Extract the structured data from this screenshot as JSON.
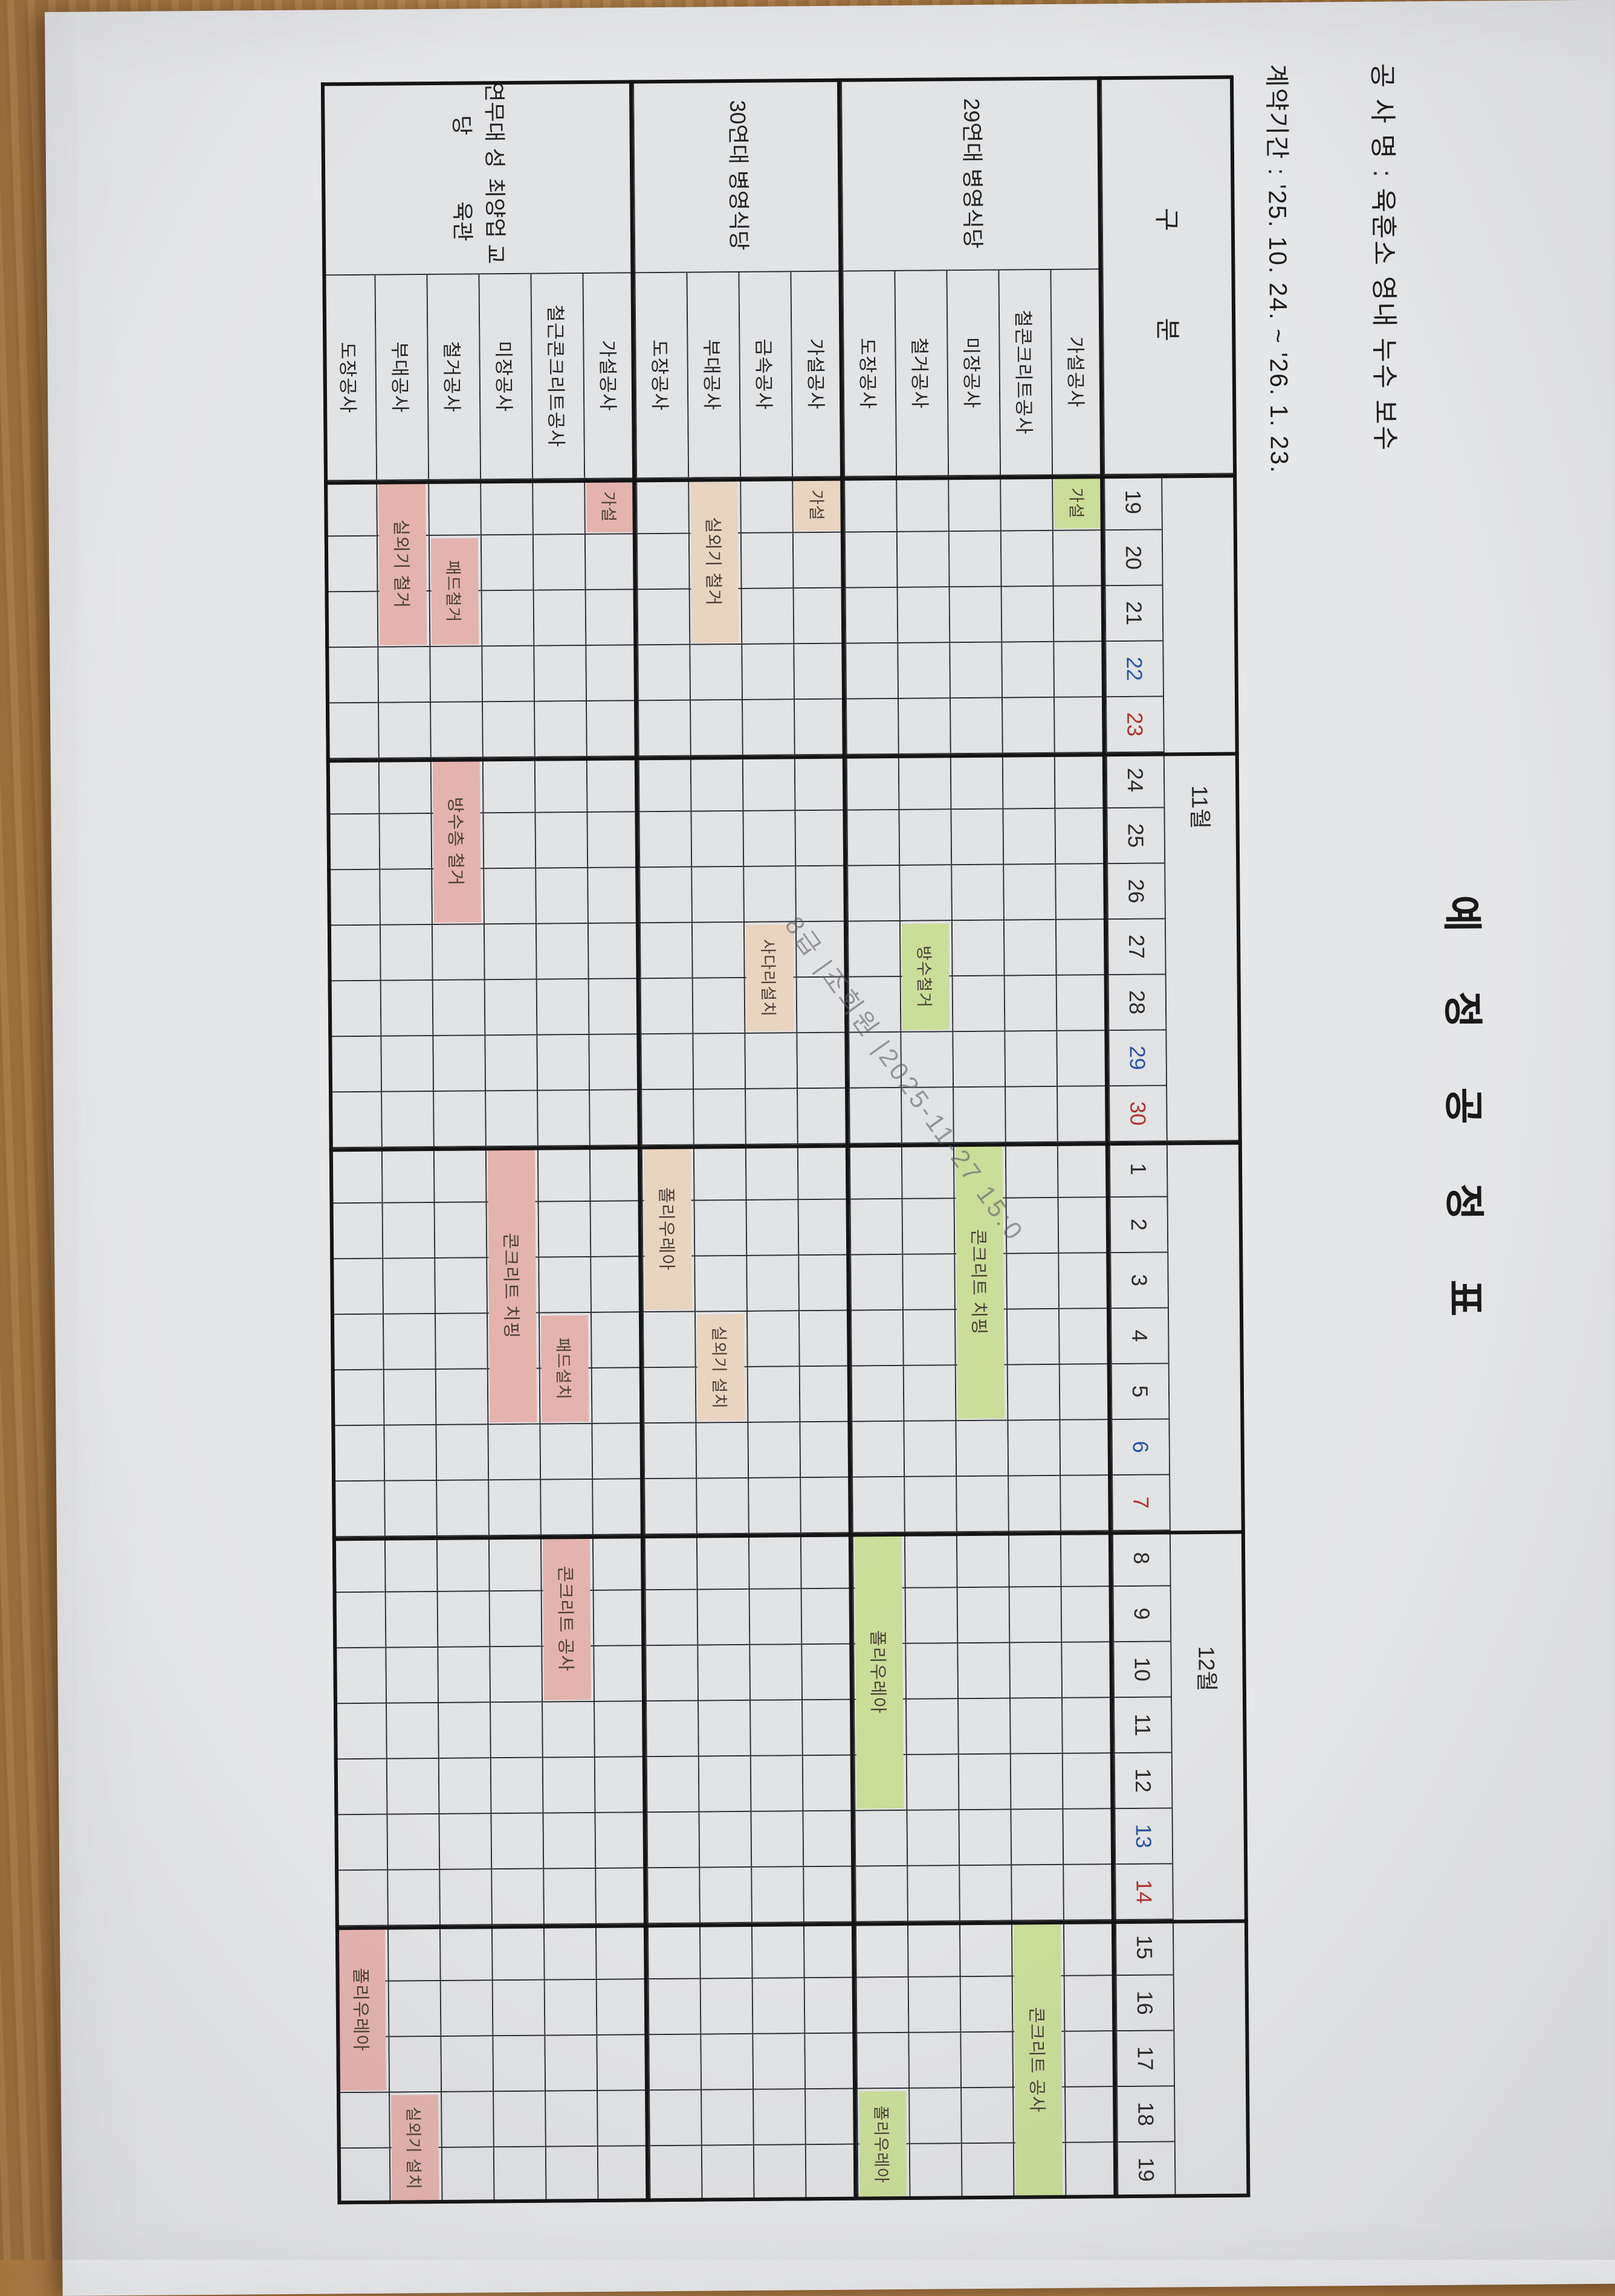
{
  "page": {
    "title": "예 정 공 정 표",
    "project_line": "공 사 명 : 육훈소 영내 누수 보수",
    "contract_line": "계약기간 : '25. 10. 24. ~ '26. 1. 23.",
    "watermark": "8급 |조회원 |2025-11-27 15:0"
  },
  "colors": {
    "green": "#cadd99",
    "tan": "#e9d4c0",
    "pink": "#e4b3ae",
    "saturday": "#2b55a3",
    "sunday": "#b23430",
    "paper": "#e6e7e9",
    "cell": "#e2e3e5",
    "wood": "#b5854f",
    "ink": "#232323"
  },
  "table": {
    "corner_label": "구 분",
    "months": [
      {
        "label": "11월",
        "month": 11,
        "days": [
          19,
          20,
          21,
          22,
          23,
          24,
          25,
          26,
          27,
          28,
          29,
          30
        ],
        "saturdays": [
          22,
          29
        ],
        "sundays": [
          23,
          30
        ]
      },
      {
        "label": "12월",
        "month": 12,
        "days": [
          1,
          2,
          3,
          4,
          5,
          6,
          7,
          8,
          9,
          10,
          11,
          12,
          13,
          14,
          15,
          16,
          17,
          18,
          19
        ],
        "saturdays": [
          6,
          13
        ],
        "sundays": [
          7,
          14
        ]
      }
    ],
    "week_boundaries_after": [
      "11-23",
      "11-30",
      "12-07",
      "12-14"
    ],
    "groups": [
      {
        "name": "29연대 병영식당",
        "color": "green",
        "rows": [
          {
            "label": "가설공사",
            "bars": [
              {
                "text": "가설",
                "start": "11-19",
                "end": "11-19"
              }
            ]
          },
          {
            "label": "철콘크리트공사",
            "bars": [
              {
                "text": "콘크리트 공사",
                "start": "12-15",
                "end": "12-19"
              }
            ]
          },
          {
            "label": "미장공사",
            "bars": [
              {
                "text": "콘크리트 치핑",
                "start": "12-01",
                "end": "12-05"
              }
            ]
          },
          {
            "label": "철거공사",
            "bars": [
              {
                "text": "방수철거",
                "start": "11-27",
                "end": "11-28"
              }
            ]
          },
          {
            "label": "도장공사",
            "bars": [
              {
                "text": "폴리우레아",
                "start": "12-08",
                "end": "12-12"
              },
              {
                "text": "폴리우레아",
                "start": "12-18",
                "end": "12-19"
              }
            ]
          }
        ]
      },
      {
        "name": "30연대 병영식당",
        "color": "tan",
        "rows": [
          {
            "label": "가설공사",
            "bars": [
              {
                "text": "가설",
                "start": "11-19",
                "end": "11-19"
              }
            ]
          },
          {
            "label": "금속공사",
            "bars": [
              {
                "text": "사다리설치",
                "start": "11-27",
                "end": "11-28"
              }
            ]
          },
          {
            "label": "부대공사",
            "bars": [
              {
                "text": "실외기 철거",
                "start": "11-19",
                "end": "11-21"
              },
              {
                "text": "실외기 설치",
                "start": "12-04",
                "end": "12-05"
              }
            ]
          },
          {
            "label": "도장공사",
            "bars": [
              {
                "text": "폴리우레아",
                "start": "12-01",
                "end": "12-03"
              }
            ]
          }
        ]
      },
      {
        "name": "연무대 성당\n최양업 교육관",
        "color": "pink",
        "rows": [
          {
            "label": "가설공사",
            "bars": [
              {
                "text": "가설",
                "start": "11-19",
                "end": "11-19"
              }
            ]
          },
          {
            "label": "철근콘크리트공사",
            "bars": [
              {
                "text": "패드설치",
                "start": "12-04",
                "end": "12-05"
              },
              {
                "text": "콘크리트 공사",
                "start": "12-08",
                "end": "12-10"
              }
            ]
          },
          {
            "label": "미장공사",
            "bars": [
              {
                "text": "콘크리트 치핑",
                "start": "12-01",
                "end": "12-05"
              }
            ]
          },
          {
            "label": "철거공사",
            "bars": [
              {
                "text": "패드철거",
                "start": "11-20",
                "end": "11-21"
              },
              {
                "text": "방수층 철거",
                "start": "11-24",
                "end": "11-26"
              }
            ]
          },
          {
            "label": "부대공사",
            "bars": [
              {
                "text": "실외기 철거",
                "start": "11-19",
                "end": "11-21"
              },
              {
                "text": "실외기 설치",
                "start": "12-18",
                "end": "12-19"
              }
            ]
          },
          {
            "label": "도장공사",
            "bars": [
              {
                "text": "폴리우레아",
                "start": "12-15",
                "end": "12-17"
              }
            ]
          }
        ]
      }
    ]
  }
}
